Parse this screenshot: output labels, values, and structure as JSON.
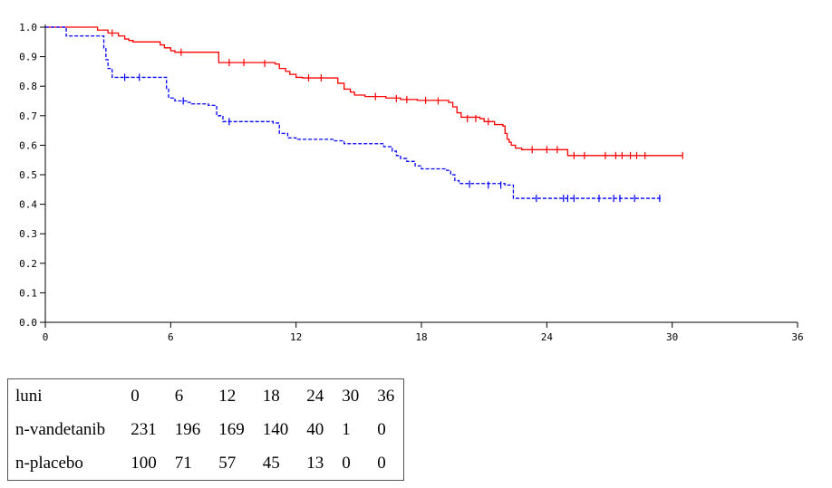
{
  "chart_data": {
    "type": "line",
    "step": true,
    "xlim": [
      0,
      36
    ],
    "ylim": [
      0,
      1
    ],
    "xticks": [
      "0",
      "6",
      "12",
      "18",
      "24",
      "30",
      "36"
    ],
    "yticks": [
      "0.0",
      "0.1",
      "0.2",
      "0.3",
      "0.4",
      "0.5",
      "0.6",
      "0.7",
      "0.8",
      "0.9",
      "1.0"
    ],
    "series": [
      {
        "color": "#ff0000",
        "style": "solid",
        "points": [
          [
            0,
            1.0
          ],
          [
            1.5,
            1.0
          ],
          [
            2.5,
            0.99
          ],
          [
            3.0,
            0.98
          ],
          [
            3.5,
            0.97
          ],
          [
            3.8,
            0.96
          ],
          [
            4.0,
            0.955
          ],
          [
            4.2,
            0.95
          ],
          [
            5.2,
            0.95
          ],
          [
            5.5,
            0.94
          ],
          [
            5.7,
            0.93
          ],
          [
            6.0,
            0.92
          ],
          [
            6.2,
            0.915
          ],
          [
            8.0,
            0.915
          ],
          [
            8.3,
            0.88
          ],
          [
            11.0,
            0.875
          ],
          [
            11.2,
            0.86
          ],
          [
            11.5,
            0.85
          ],
          [
            11.7,
            0.84
          ],
          [
            12.0,
            0.83
          ],
          [
            12.3,
            0.828
          ],
          [
            13.8,
            0.828
          ],
          [
            14.0,
            0.81
          ],
          [
            14.3,
            0.79
          ],
          [
            14.6,
            0.78
          ],
          [
            14.8,
            0.77
          ],
          [
            15.3,
            0.765
          ],
          [
            16.3,
            0.76
          ],
          [
            17.0,
            0.755
          ],
          [
            17.8,
            0.752
          ],
          [
            19.3,
            0.745
          ],
          [
            19.5,
            0.73
          ],
          [
            19.7,
            0.71
          ],
          [
            19.9,
            0.695
          ],
          [
            20.8,
            0.69
          ],
          [
            21.0,
            0.68
          ],
          [
            21.5,
            0.67
          ],
          [
            21.9,
            0.665
          ],
          [
            22.0,
            0.64
          ],
          [
            22.1,
            0.62
          ],
          [
            22.2,
            0.61
          ],
          [
            22.3,
            0.6
          ],
          [
            22.5,
            0.59
          ],
          [
            22.8,
            0.585
          ],
          [
            24.8,
            0.585
          ],
          [
            25.0,
            0.565
          ],
          [
            30.5,
            0.565
          ]
        ],
        "censor": [
          [
            3.2,
            0.98
          ],
          [
            6.5,
            0.915
          ],
          [
            8.8,
            0.88
          ],
          [
            9.5,
            0.88
          ],
          [
            10.5,
            0.877
          ],
          [
            12.6,
            0.828
          ],
          [
            13.2,
            0.828
          ],
          [
            15.8,
            0.765
          ],
          [
            16.8,
            0.758
          ],
          [
            17.3,
            0.755
          ],
          [
            18.2,
            0.752
          ],
          [
            18.8,
            0.75
          ],
          [
            20.2,
            0.69
          ],
          [
            20.6,
            0.69
          ],
          [
            21.2,
            0.68
          ],
          [
            23.3,
            0.585
          ],
          [
            24.0,
            0.585
          ],
          [
            24.5,
            0.585
          ],
          [
            25.3,
            0.565
          ],
          [
            25.8,
            0.565
          ],
          [
            26.8,
            0.565
          ],
          [
            27.3,
            0.565
          ],
          [
            27.6,
            0.565
          ],
          [
            28.0,
            0.565
          ],
          [
            28.3,
            0.565
          ],
          [
            28.7,
            0.565
          ],
          [
            30.5,
            0.565
          ]
        ]
      },
      {
        "color": "#0000ff",
        "style": "dashed",
        "points": [
          [
            0,
            1.0
          ],
          [
            0.8,
            1.0
          ],
          [
            1.0,
            0.97
          ],
          [
            2.6,
            0.97
          ],
          [
            2.8,
            0.93
          ],
          [
            2.9,
            0.89
          ],
          [
            3.0,
            0.86
          ],
          [
            3.2,
            0.83
          ],
          [
            5.6,
            0.83
          ],
          [
            5.8,
            0.79
          ],
          [
            5.9,
            0.76
          ],
          [
            6.2,
            0.75
          ],
          [
            6.8,
            0.745
          ],
          [
            7.0,
            0.74
          ],
          [
            7.8,
            0.735
          ],
          [
            8.2,
            0.7
          ],
          [
            8.5,
            0.68
          ],
          [
            10.9,
            0.675
          ],
          [
            11.2,
            0.64
          ],
          [
            11.6,
            0.625
          ],
          [
            12.0,
            0.62
          ],
          [
            13.8,
            0.615
          ],
          [
            14.3,
            0.605
          ],
          [
            16.2,
            0.595
          ],
          [
            16.6,
            0.58
          ],
          [
            16.8,
            0.565
          ],
          [
            17.0,
            0.555
          ],
          [
            17.3,
            0.545
          ],
          [
            17.7,
            0.53
          ],
          [
            18.0,
            0.52
          ],
          [
            19.2,
            0.515
          ],
          [
            19.4,
            0.5
          ],
          [
            19.6,
            0.48
          ],
          [
            19.8,
            0.47
          ],
          [
            22.0,
            0.465
          ],
          [
            22.4,
            0.42
          ],
          [
            29.5,
            0.42
          ]
        ],
        "censor": [
          [
            3.8,
            0.83
          ],
          [
            4.5,
            0.83
          ],
          [
            6.6,
            0.75
          ],
          [
            8.8,
            0.68
          ],
          [
            20.3,
            0.468
          ],
          [
            21.2,
            0.465
          ],
          [
            21.8,
            0.465
          ],
          [
            23.5,
            0.42
          ],
          [
            24.8,
            0.42
          ],
          [
            25.0,
            0.42
          ],
          [
            25.3,
            0.42
          ],
          [
            26.5,
            0.42
          ],
          [
            27.2,
            0.42
          ],
          [
            27.5,
            0.42
          ],
          [
            28.2,
            0.42
          ],
          [
            29.4,
            0.42
          ]
        ]
      }
    ]
  },
  "table": {
    "rows": [
      [
        "luni",
        "0",
        "6",
        "12",
        "18",
        "24",
        "30",
        "36"
      ],
      [
        "n-vandetanib",
        "231",
        "196",
        "169",
        "140",
        "40",
        "1",
        "0"
      ],
      [
        "n-placebo",
        "100",
        "71",
        "57",
        "45",
        "13",
        "0",
        "0"
      ]
    ]
  }
}
